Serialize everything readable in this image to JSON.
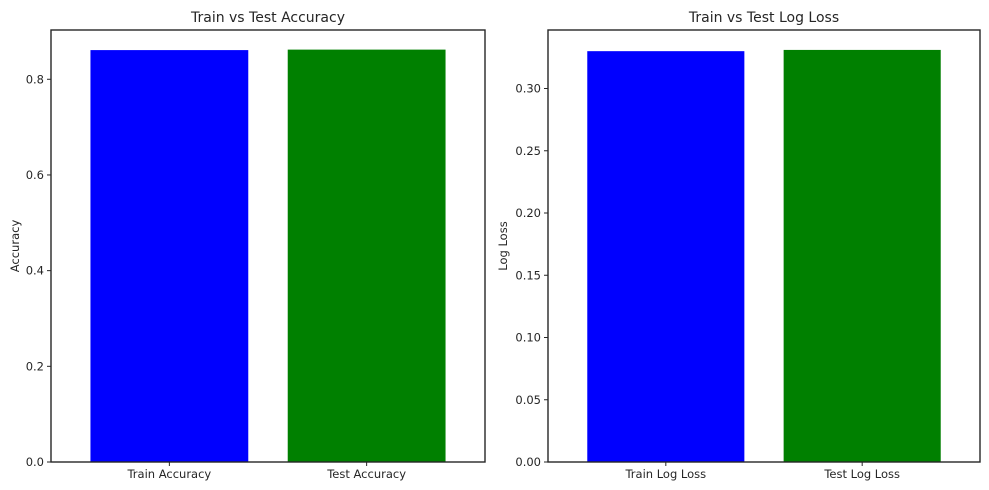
{
  "chart_data": [
    {
      "type": "bar",
      "title": "Train vs Test Accuracy",
      "xlabel": "",
      "ylabel": "Accuracy",
      "categories": [
        "Train Accuracy",
        "Test Accuracy"
      ],
      "values": [
        0.861,
        0.862
      ],
      "colors": [
        "#0000ff",
        "#008000"
      ],
      "ylim": [
        0,
        0.903
      ],
      "yticks": [
        0.0,
        0.2,
        0.4,
        0.6,
        0.8
      ],
      "ytick_labels": [
        "0.0",
        "0.2",
        "0.4",
        "0.6",
        "0.8"
      ],
      "grid": false
    },
    {
      "type": "bar",
      "title": "Train vs Test Log Loss",
      "xlabel": "",
      "ylabel": "Log Loss",
      "categories": [
        "Train Log Loss",
        "Test Log Loss"
      ],
      "values": [
        0.33,
        0.331
      ],
      "colors": [
        "#0000ff",
        "#008000"
      ],
      "ylim": [
        0,
        0.347
      ],
      "yticks": [
        0.0,
        0.05,
        0.1,
        0.15,
        0.2,
        0.25,
        0.3
      ],
      "ytick_labels": [
        "0.00",
        "0.05",
        "0.10",
        "0.15",
        "0.20",
        "0.25",
        "0.30"
      ],
      "grid": false
    }
  ]
}
